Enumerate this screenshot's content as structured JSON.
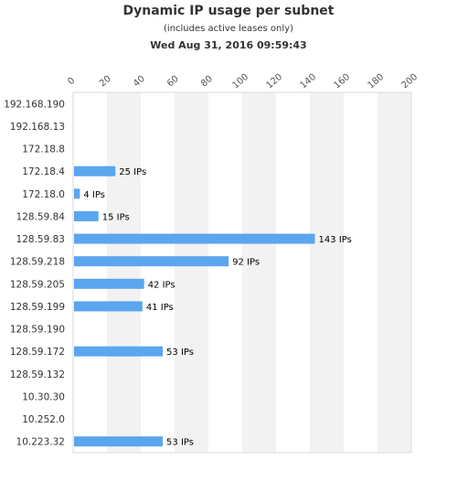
{
  "header": {
    "title": "Dynamic IP usage per subnet",
    "subtitle": "(includes active leases only)",
    "timestamp": "Wed Aug 31, 2016 09:59:43"
  },
  "colors": {
    "bar": "#5aa6ef",
    "band": "#f2f2f2",
    "border": "#d9d9d9"
  },
  "chart_data": {
    "type": "bar",
    "orientation": "horizontal",
    "title": "Dynamic IP usage per subnet",
    "subtitle": "(includes active leases only)",
    "categories": [
      "192.168.190",
      "192.168.13",
      "172.18.8",
      "172.18.4",
      "172.18.0",
      "128.59.84",
      "128.59.83",
      "128.59.218",
      "128.59.205",
      "128.59.199",
      "128.59.190",
      "128.59.172",
      "128.59.132",
      "10.30.30",
      "10.252.0",
      "10.223.32"
    ],
    "values": [
      0,
      0,
      0,
      25,
      4,
      15,
      143,
      92,
      42,
      41,
      0,
      53,
      0,
      0,
      0,
      53
    ],
    "value_labels": [
      "",
      "",
      "",
      "25 IPs",
      "4 IPs",
      "15 IPs",
      "143 IPs",
      "92 IPs",
      "42 IPs",
      "41 IPs",
      "",
      "53 IPs",
      "",
      "",
      "",
      "53 IPs"
    ],
    "xticks": [
      "0",
      "20",
      "40",
      "60",
      "80",
      "100",
      "120",
      "140",
      "160",
      "180",
      "200"
    ],
    "xlim": [
      0,
      200
    ],
    "xaxis_position": "top",
    "alternating_bands": true
  }
}
